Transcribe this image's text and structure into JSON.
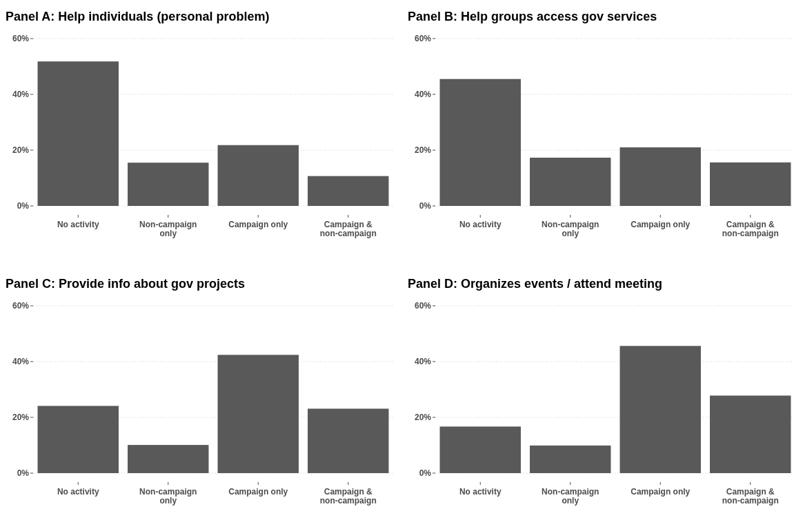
{
  "chart_data": [
    {
      "type": "bar",
      "title": "Panel A: Help individuals (personal problem)",
      "categories": [
        "No activity",
        "Non-campaign only",
        "Campaign only",
        "Campaign & non-campaign"
      ],
      "values": [
        51.8,
        15.5,
        21.8,
        10.7
      ],
      "color": "#595959",
      "ylim": [
        0,
        60
      ],
      "yticks": [
        {
          "value": 0,
          "label": "0%"
        },
        {
          "value": 20,
          "label": "20%"
        },
        {
          "value": 40,
          "label": "40%"
        },
        {
          "value": 60,
          "label": "60%"
        }
      ],
      "grid": "y"
    },
    {
      "type": "bar",
      "title": "Panel B: Help groups access gov services",
      "categories": [
        "No activity",
        "Non-campaign only",
        "Campaign only",
        "Campaign & non-campaign"
      ],
      "values": [
        45.5,
        17.3,
        21.0,
        15.6
      ],
      "color": "#595959",
      "ylim": [
        0,
        60
      ],
      "yticks": [
        {
          "value": 0,
          "label": "0%"
        },
        {
          "value": 20,
          "label": "20%"
        },
        {
          "value": 40,
          "label": "40%"
        },
        {
          "value": 60,
          "label": "60%"
        }
      ],
      "grid": "y"
    },
    {
      "type": "bar",
      "title": "Panel C: Provide info about gov projects",
      "categories": [
        "No activity",
        "Non-campaign only",
        "Campaign only",
        "Campaign & non-campaign"
      ],
      "values": [
        24.1,
        10.1,
        42.4,
        23.1
      ],
      "color": "#595959",
      "ylim": [
        0,
        60
      ],
      "yticks": [
        {
          "value": 0,
          "label": "0%"
        },
        {
          "value": 20,
          "label": "20%"
        },
        {
          "value": 40,
          "label": "40%"
        },
        {
          "value": 60,
          "label": "60%"
        }
      ],
      "grid": "y"
    },
    {
      "type": "bar",
      "title": "Panel D: Organizes events / attend meeting",
      "categories": [
        "No activity",
        "Non-campaign only",
        "Campaign only",
        "Campaign & non-campaign"
      ],
      "values": [
        16.7,
        9.9,
        45.6,
        27.8
      ],
      "color": "#595959",
      "ylim": [
        0,
        60
      ],
      "yticks": [
        {
          "value": 0,
          "label": "0%"
        },
        {
          "value": 20,
          "label": "20%"
        },
        {
          "value": 40,
          "label": "40%"
        },
        {
          "value": 60,
          "label": "60%"
        }
      ],
      "grid": "y"
    }
  ]
}
